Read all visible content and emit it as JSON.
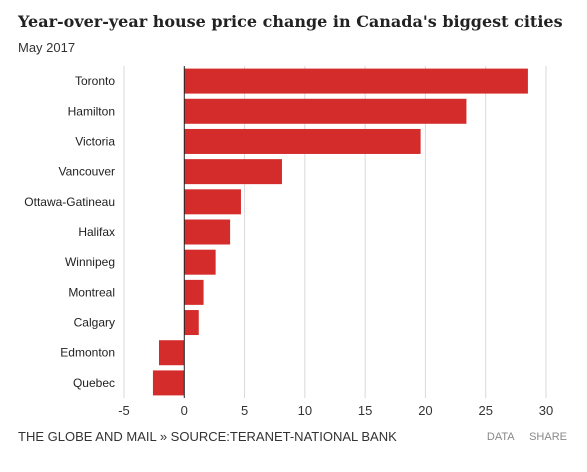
{
  "header": {
    "title": "Year-over-year house price change in Canada's biggest cities",
    "subtitle": "May 2017"
  },
  "footer": {
    "source": "THE GLOBE AND MAIL » SOURCE:TERANET-NATIONAL BANK",
    "data_link": "DATA",
    "share_link": "SHARE"
  },
  "colors": {
    "bar": "#d42b2b",
    "grid": "#d9d9d9",
    "axis": "#222222"
  },
  "chart_data": {
    "type": "bar",
    "orientation": "horizontal",
    "title": "Year-over-year house price change in Canada's biggest cities",
    "subtitle": "May 2017",
    "categories": [
      "Toronto",
      "Hamilton",
      "Victoria",
      "Vancouver",
      "Ottawa-Gatineau",
      "Halifax",
      "Winnipeg",
      "Montreal",
      "Calgary",
      "Edmonton",
      "Quebec"
    ],
    "values": [
      28.5,
      23.4,
      19.6,
      8.1,
      4.7,
      3.8,
      2.6,
      1.6,
      1.2,
      -2.1,
      -2.6
    ],
    "xlim": [
      -5,
      30
    ],
    "xticks": [
      -5,
      0,
      5,
      10,
      15,
      20,
      25,
      30
    ],
    "grid": "vertical"
  }
}
